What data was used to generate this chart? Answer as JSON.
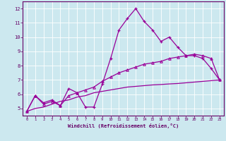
{
  "xlabel": "Windchill (Refroidissement éolien,°C)",
  "bg_color": "#cce8ef",
  "line_color": "#990099",
  "grid_color": "#b0d8e0",
  "x_data": [
    0,
    1,
    2,
    3,
    4,
    5,
    6,
    7,
    8,
    9,
    10,
    11,
    12,
    13,
    14,
    15,
    16,
    17,
    18,
    19,
    20,
    21,
    22,
    23
  ],
  "line1_y": [
    4.8,
    5.9,
    5.4,
    5.6,
    5.2,
    6.4,
    6.1,
    5.1,
    5.1,
    6.7,
    8.5,
    10.5,
    11.3,
    12.0,
    11.1,
    10.5,
    9.7,
    10.0,
    9.3,
    8.7,
    8.7,
    8.5,
    7.8,
    7.0
  ],
  "line2_y": [
    4.8,
    5.9,
    5.3,
    5.5,
    5.2,
    5.9,
    6.1,
    6.3,
    6.5,
    6.9,
    7.2,
    7.5,
    7.7,
    7.9,
    8.1,
    8.2,
    8.3,
    8.5,
    8.6,
    8.7,
    8.8,
    8.7,
    8.5,
    7.0
  ],
  "line3_y": [
    4.8,
    5.0,
    5.1,
    5.3,
    5.5,
    5.6,
    5.8,
    5.9,
    6.1,
    6.2,
    6.3,
    6.4,
    6.5,
    6.55,
    6.6,
    6.65,
    6.68,
    6.72,
    6.75,
    6.8,
    6.85,
    6.9,
    6.95,
    7.0
  ],
  "ylim": [
    4.5,
    12.5
  ],
  "xlim": [
    -0.5,
    23.5
  ],
  "yticks": [
    5,
    6,
    7,
    8,
    9,
    10,
    11,
    12
  ],
  "xticks": [
    0,
    1,
    2,
    3,
    4,
    5,
    6,
    7,
    8,
    9,
    10,
    11,
    12,
    13,
    14,
    15,
    16,
    17,
    18,
    19,
    20,
    21,
    22,
    23
  ]
}
